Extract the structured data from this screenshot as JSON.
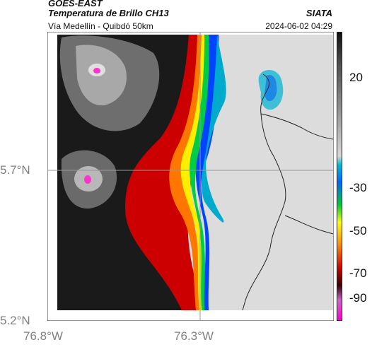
{
  "header": {
    "satellite": "GOES-EAST",
    "product": "Temperatura de Brillo CH13",
    "region": "Vía Medellín - Quibdó 50km",
    "agency": "SIATA",
    "timestamp": "2024-06-02 04:29"
  },
  "axes": {
    "lat_labels": [
      "5.7°N",
      "5.2°N"
    ],
    "lon_labels": [
      "76.8°W",
      "76.3°W"
    ]
  },
  "colorbar": {
    "labels": [
      "20",
      "-30",
      "-50",
      "-70",
      "-90"
    ],
    "colors": [
      "#111111",
      "#4a4a4a",
      "#8c8c8c",
      "#d9d9d9",
      "#00bcd4",
      "#0066ff",
      "#00cc33",
      "#ffff00",
      "#ff8800",
      "#cc0000",
      "#3a0000",
      "#cc66cc",
      "#ff00cc"
    ]
  },
  "map": {
    "cloud_colors": {
      "warm_surface": "#d8d8d8",
      "cold_core": "#ff33cc",
      "front": [
        "#0044ff",
        "#00cc44",
        "#ffee00",
        "#ff7700",
        "#dd0000"
      ]
    }
  }
}
